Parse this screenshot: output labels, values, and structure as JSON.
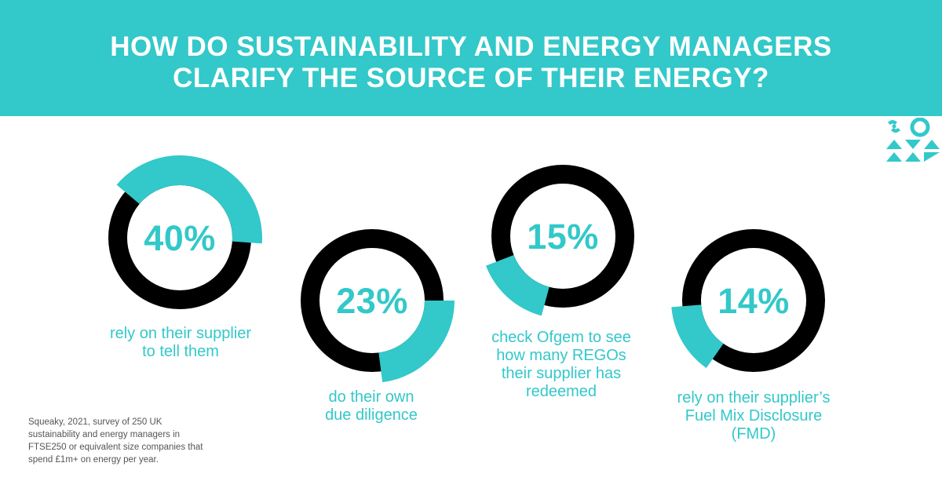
{
  "title": {
    "line1": "HOW DO SUSTAINABILITY AND ENERGY MANAGERS",
    "line2": "CLARIFY THE SOURCE OF THEIR ENERGY?"
  },
  "colors": {
    "accent": "#33c8c9",
    "ring": "#000000",
    "banner_text": "#ffffff"
  },
  "chart_data": {
    "type": "pie",
    "variant": "donut",
    "title": "HOW DO SUSTAINABILITY AND ENERGY MANAGERS CLARIFY THE SOURCE OF THEIR ENERGY?",
    "series": [
      {
        "name": "rely on their supplier to tell them",
        "value": 40,
        "label": "40%",
        "caption": [
          "rely on their supplier",
          "to tell them"
        ]
      },
      {
        "name": "do their own due diligence",
        "value": 23,
        "label": "23%",
        "caption": [
          "do their own",
          "due diligence"
        ]
      },
      {
        "name": "check Ofgem to see how many REGOs their supplier has redeemed",
        "value": 15,
        "label": "15%",
        "caption": [
          "check Ofgem to see",
          "how many REGOs",
          "their supplier has",
          "redeemed"
        ]
      },
      {
        "name": "rely on their supplier's Fuel Mix Disclosure (FMD)",
        "value": 14,
        "label": "14%",
        "caption": [
          "rely on their supplier’s",
          "Fuel Mix Disclosure",
          "(FMD)"
        ]
      }
    ]
  },
  "source": {
    "lines": [
      "Squeaky, 2021, survey of 250 UK",
      "sustainability and energy managers in",
      "FTSE250 or equivalent size companies that",
      "spend £1m+ on energy per year."
    ]
  },
  "logo": {
    "icon": "squeaky-brand-icon"
  }
}
